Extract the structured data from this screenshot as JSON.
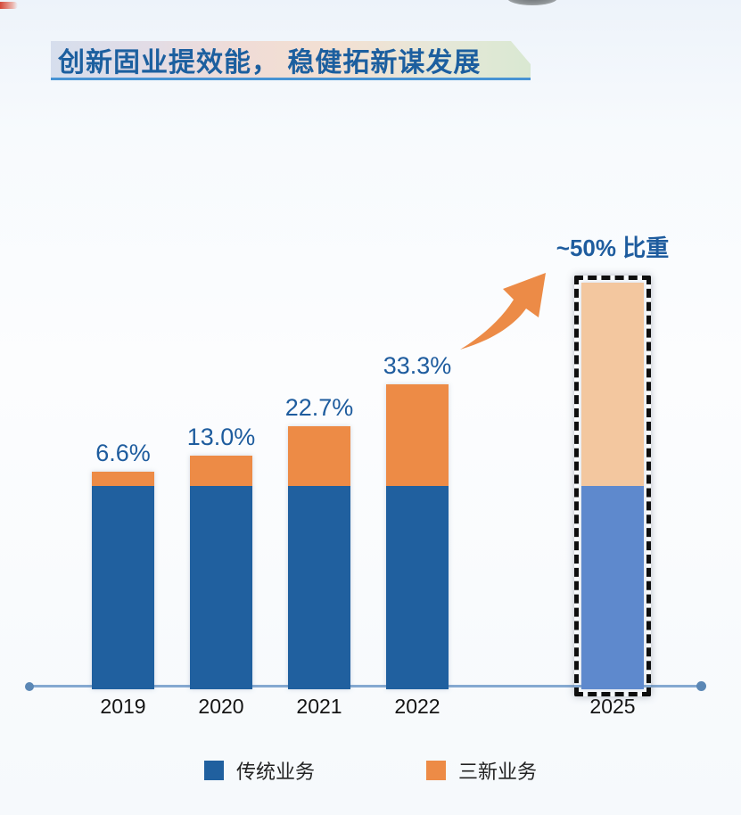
{
  "title_banner": {
    "text": "创新固业提效能， 稳健拓新谋发展"
  },
  "chart_data": {
    "type": "bar",
    "stacked": true,
    "title": "创新固业提效能， 稳健拓新谋发展",
    "categories": [
      "2019",
      "2020",
      "2021",
      "2022",
      "2025"
    ],
    "value_basis": "relative units, traditional business held constant at 100",
    "series": [
      {
        "name": "传统业务",
        "values": [
          100,
          100,
          100,
          100,
          100
        ]
      },
      {
        "name": "三新业务",
        "values": [
          7.1,
          14.9,
          29.4,
          49.9,
          100
        ]
      }
    ],
    "new_business_share_pct": [
      6.6,
      13.0,
      22.7,
      33.3,
      50
    ],
    "bar_labels": [
      "6.6%",
      "13.0%",
      "22.7%",
      "33.3%",
      "~50% 比重"
    ],
    "highlight": {
      "category": "2025",
      "label": "~50% 比重",
      "outline": "black-dashed"
    },
    "legend": [
      {
        "label": "传统业务",
        "color": "#20609F"
      },
      {
        "label": "三新业务",
        "color": "#ED8B46"
      }
    ],
    "colors": {
      "traditional_business": "#20609F",
      "new_business": "#ED8B46",
      "highlight_traditional": "#5E89CD",
      "highlight_new": "#F3C79F",
      "value_label": "#1E5C9E",
      "axis": "#85A9D1",
      "arrow": "#EC8B47"
    },
    "x_axis": {
      "labels": [
        "2019",
        "2020",
        "2021",
        "2022",
        "2025"
      ],
      "label_color": "#141414"
    },
    "y_axis": {
      "visible": false
    },
    "gridlines": false,
    "legend_position": "bottom"
  }
}
